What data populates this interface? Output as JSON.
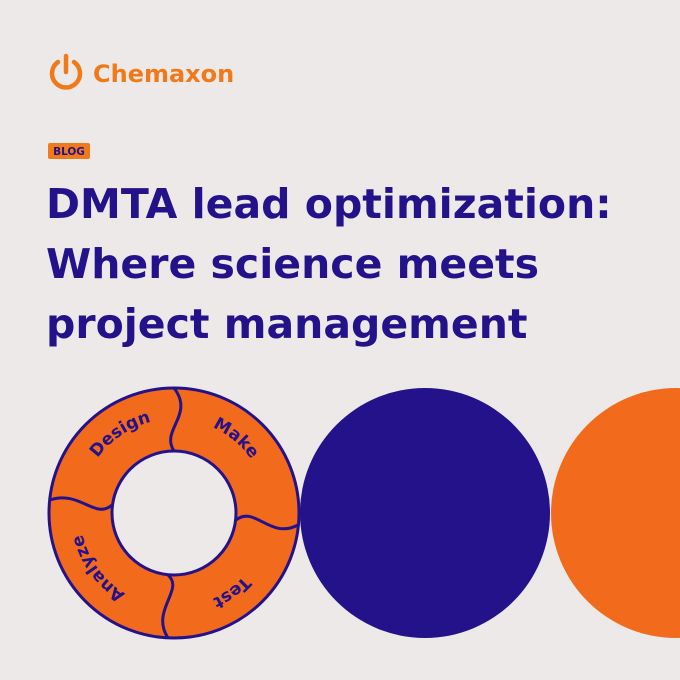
{
  "brand": "Chemaxon",
  "tag": "BLOG",
  "title_lines": [
    "DMTA lead optimization:",
    "Where science meets",
    "project management"
  ],
  "cycle": [
    "Design",
    "Make",
    "Test",
    "Analyze"
  ]
}
